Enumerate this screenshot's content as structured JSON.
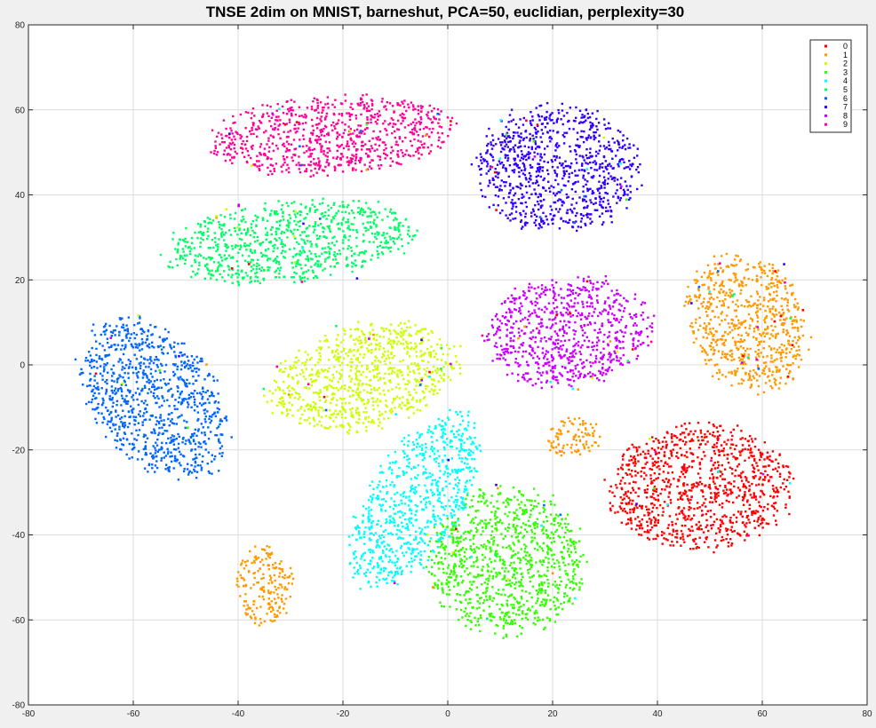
{
  "chart_data": {
    "type": "scatter",
    "title": "TNSE 2dim on MNIST, barneshut, PCA=50, euclidian, perplexity=30",
    "xlabel": "",
    "ylabel": "",
    "xlim": [
      -80,
      80
    ],
    "ylim": [
      -80,
      80
    ],
    "xticks": [
      -80,
      -60,
      -40,
      -20,
      0,
      20,
      40,
      60,
      80
    ],
    "yticks": [
      -80,
      -60,
      -40,
      -20,
      0,
      20,
      40,
      60,
      80
    ],
    "grid": true,
    "legend_position": "top-right",
    "series": [
      {
        "name": "0",
        "color": "#ff0000",
        "clusters": [
          {
            "cx": 48,
            "cy": -29,
            "rx": 19,
            "ry": 16,
            "rot": 0
          }
        ]
      },
      {
        "name": "1",
        "color": "#ff9900",
        "clusters": [
          {
            "cx": 57,
            "cy": 10,
            "rx": 12,
            "ry": 18,
            "rot": 15
          },
          {
            "cx": 24,
            "cy": -17,
            "rx": 6,
            "ry": 5,
            "rot": 30
          },
          {
            "cx": -35,
            "cy": -52,
            "rx": 6,
            "ry": 10,
            "rot": 0
          }
        ]
      },
      {
        "name": "2",
        "color": "#ccff00",
        "clusters": [
          {
            "cx": -16,
            "cy": -3,
            "rx": 20,
            "ry": 13,
            "rot": 20
          }
        ]
      },
      {
        "name": "3",
        "color": "#33ff00",
        "clusters": [
          {
            "cx": 11,
            "cy": -46,
            "rx": 16,
            "ry": 19,
            "rot": 0
          }
        ]
      },
      {
        "name": "4",
        "color": "#00ffff",
        "clusters": [
          {
            "cx": -6,
            "cy": -32,
            "rx": 10,
            "ry": 24,
            "rot": -25
          }
        ]
      },
      {
        "name": "5",
        "color": "#00ff66",
        "clusters": [
          {
            "cx": -30,
            "cy": 29,
            "rx": 26,
            "ry": 10,
            "rot": 8
          }
        ]
      },
      {
        "name": "6",
        "color": "#0066ff",
        "clusters": [
          {
            "cx": -56,
            "cy": -8,
            "rx": 13,
            "ry": 22,
            "rot": 28
          }
        ]
      },
      {
        "name": "7",
        "color": "#3300ff",
        "clusters": [
          {
            "cx": 21,
            "cy": 46,
            "rx": 17,
            "ry": 16,
            "rot": -20
          }
        ]
      },
      {
        "name": "8",
        "color": "#cc00ff",
        "clusters": [
          {
            "cx": 23,
            "cy": 8,
            "rx": 17,
            "ry": 14,
            "rot": 10
          }
        ]
      },
      {
        "name": "9",
        "color": "#ff0099",
        "clusters": [
          {
            "cx": -22,
            "cy": 54,
            "rx": 25,
            "ry": 10,
            "rot": 5
          }
        ]
      }
    ]
  }
}
